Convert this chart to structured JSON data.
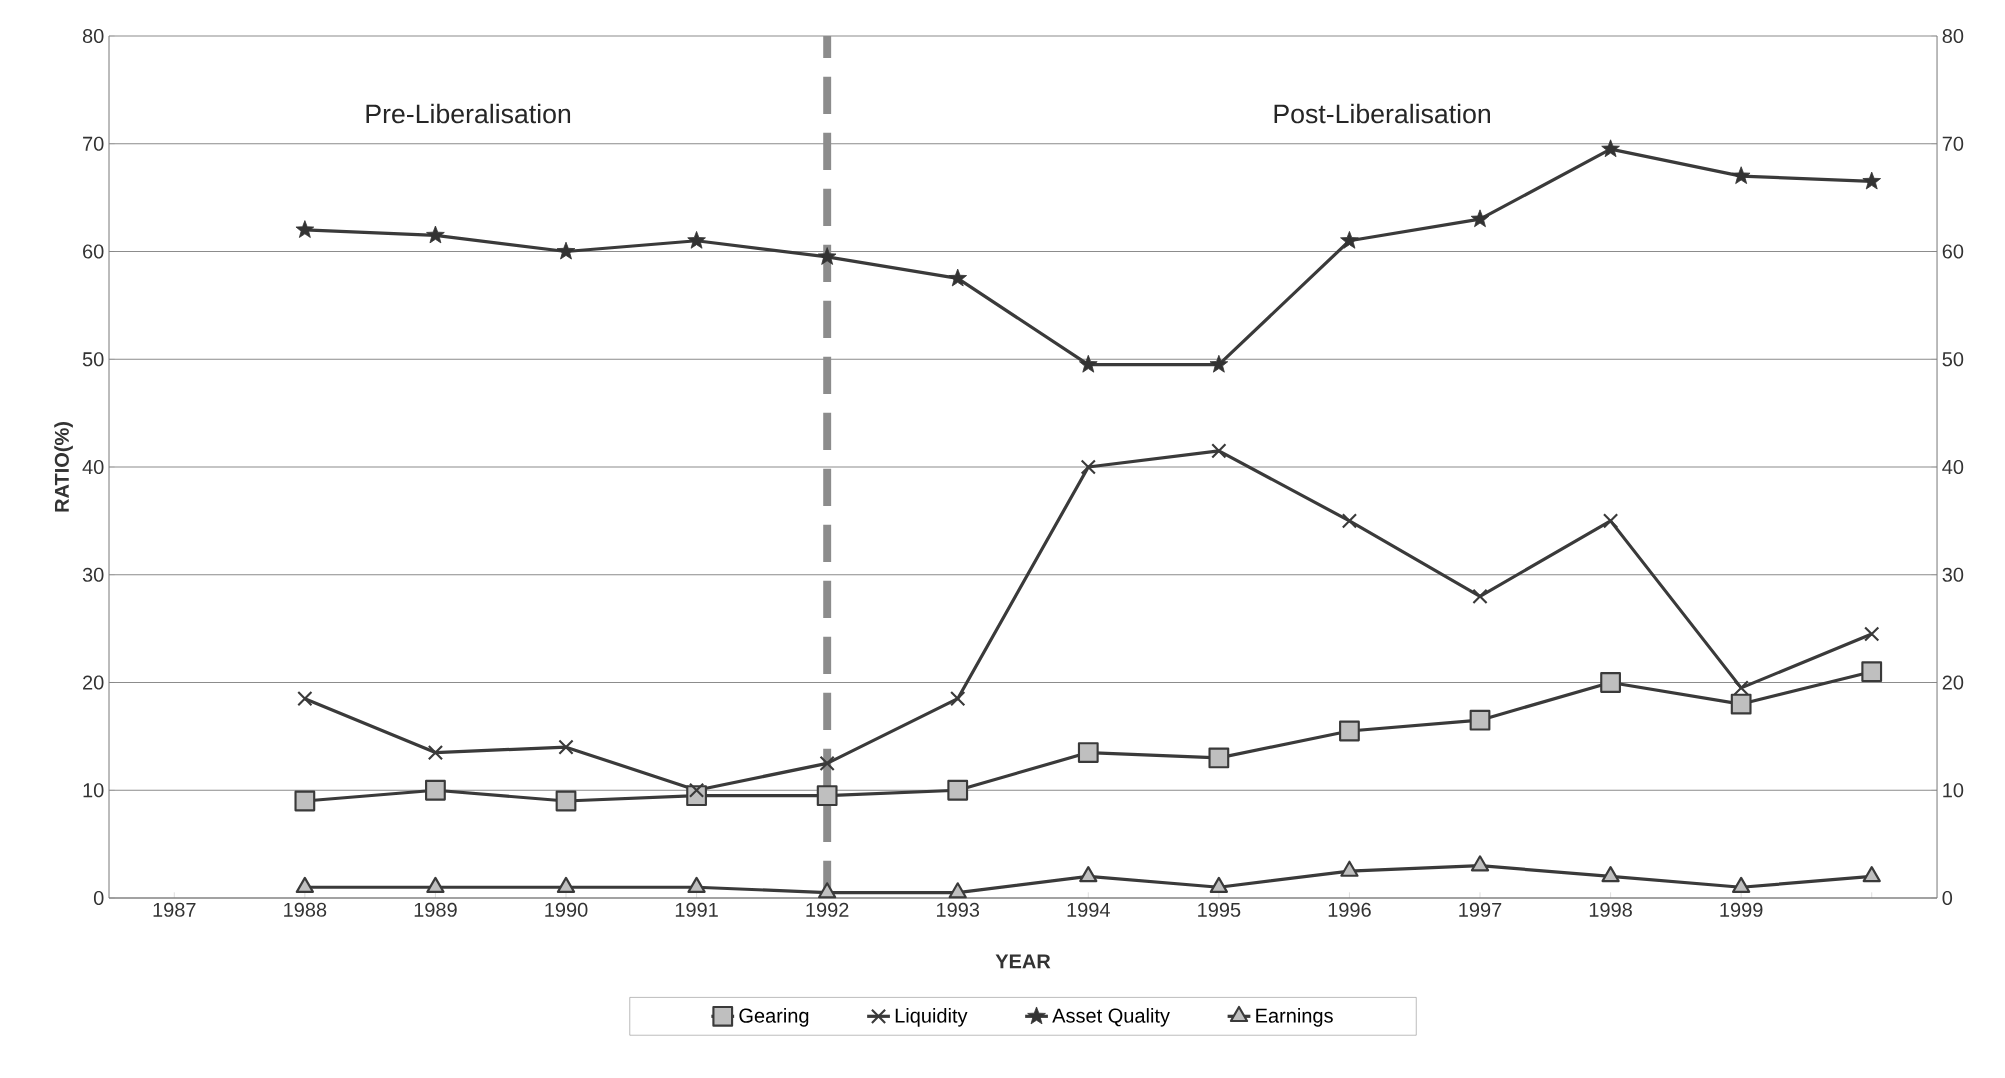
{
  "chart_data": {
    "type": "line",
    "xlabel": "YEAR",
    "ylabel": "RATIO(%)",
    "categories": [
      "1987",
      "1988",
      "1989",
      "1990",
      "1991",
      "1992",
      "1993",
      "1994",
      "1995",
      "1996",
      "1997",
      "1998",
      "1999",
      null
    ],
    "series": [
      {
        "name": "Gearing",
        "color": "#3a3a3a",
        "marker": "square",
        "values": [
          null,
          9,
          10,
          9,
          9.5,
          9.5,
          10,
          13.5,
          13,
          15.5,
          16.5,
          20,
          18,
          21
        ]
      },
      {
        "name": "Liquidity",
        "color": "#3a3a3a",
        "marker": "cross",
        "values": [
          null,
          18.5,
          13.5,
          14,
          10,
          12.5,
          18.5,
          40,
          41.5,
          35,
          28,
          35,
          19.5,
          24.5
        ]
      },
      {
        "name": "Asset Quality",
        "color": "#3a3a3a",
        "marker": "star",
        "values": [
          null,
          62,
          61.5,
          60,
          61,
          59.5,
          57.5,
          49.5,
          49.5,
          61,
          63,
          69.5,
          67,
          66.5
        ]
      },
      {
        "name": "Earnings",
        "color": "#3a3a3a",
        "marker": "triangle",
        "values": [
          null,
          1,
          1,
          1,
          1,
          0.5,
          0.5,
          2,
          1,
          2.5,
          3,
          2,
          1,
          2
        ]
      }
    ],
    "ylim": [
      0,
      80
    ],
    "yticks": [
      0,
      10,
      20,
      30,
      40,
      50,
      60,
      70,
      80
    ],
    "y2lim": [
      0,
      80
    ],
    "y2ticks": [
      0,
      10,
      20,
      30,
      40,
      50,
      60,
      70,
      80
    ],
    "grid": "y",
    "legend": "bottom",
    "ref_lines": [
      {
        "axis": "x",
        "value": "1992",
        "color": "#8c8c8c",
        "line_style": "dashed"
      }
    ],
    "annotations": [
      "Pre-Liberalisation",
      "Post-Liberalisation"
    ]
  }
}
